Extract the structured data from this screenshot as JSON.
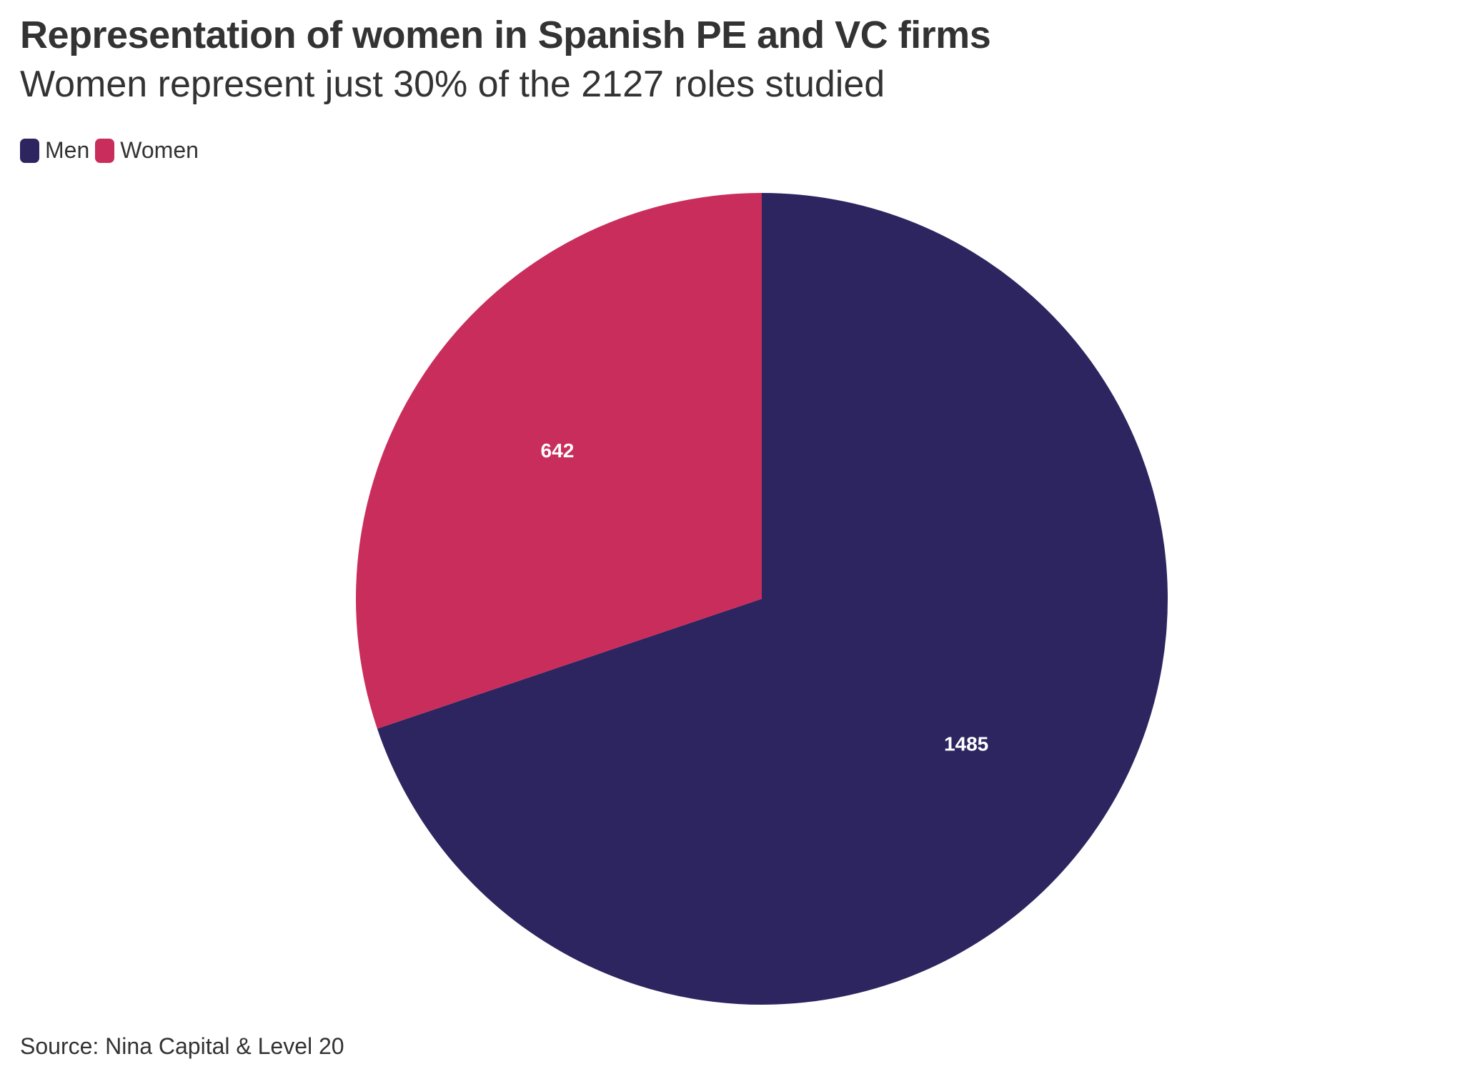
{
  "header": {
    "title": "Representation of women in Spanish PE and VC firms",
    "subtitle": "Women represent just 30% of the 2127 roles studied"
  },
  "legend": {
    "items": [
      {
        "label": "Men",
        "color": "#2d2560"
      },
      {
        "label": "Women",
        "color": "#c92d5c"
      }
    ]
  },
  "footer": {
    "source": "Source: Nina Capital & Level 20"
  },
  "chart_data": {
    "type": "pie",
    "title": "Representation of women in Spanish PE and VC firms",
    "subtitle": "Women represent just 30% of the 2127 roles studied",
    "categories": [
      "Men",
      "Women"
    ],
    "values": [
      1485,
      642
    ],
    "colors": [
      "#2d2560",
      "#c92d5c"
    ],
    "data_labels": [
      "1485",
      "642"
    ],
    "legend_position": "top-left",
    "start_angle": "12 o'clock, clockwise"
  }
}
